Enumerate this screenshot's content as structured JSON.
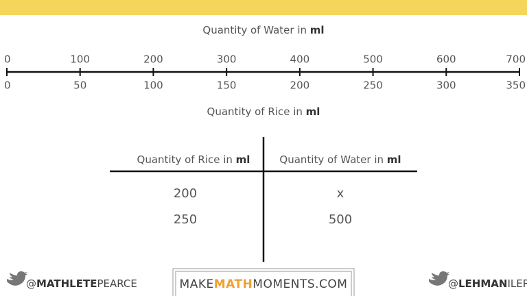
{
  "number_line": {
    "top_title": {
      "text": "Quantity of Water in",
      "unit": "ml"
    },
    "top_labels": [
      "0",
      "100",
      "200",
      "300",
      "400",
      "500",
      "600",
      "700"
    ],
    "bottom_labels": [
      "0",
      "50",
      "100",
      "150",
      "200",
      "250",
      "300",
      "350"
    ],
    "bottom_title": {
      "text": "Quantity of Rice in",
      "unit": "ml"
    }
  },
  "table": {
    "headers": [
      {
        "text": "Quantity of Rice in",
        "unit": "ml"
      },
      {
        "text": "Quantity of Water in",
        "unit": "ml"
      }
    ],
    "rows": [
      [
        "200",
        "x"
      ],
      [
        "250",
        "500"
      ]
    ]
  },
  "footer": {
    "left": [
      "@",
      "MATHLETE",
      "PEARCE"
    ],
    "center": [
      "MAKE",
      "MATH",
      "MOMENTS.COM"
    ],
    "right": [
      "@",
      "LEHMAN",
      "ILER"
    ]
  }
}
